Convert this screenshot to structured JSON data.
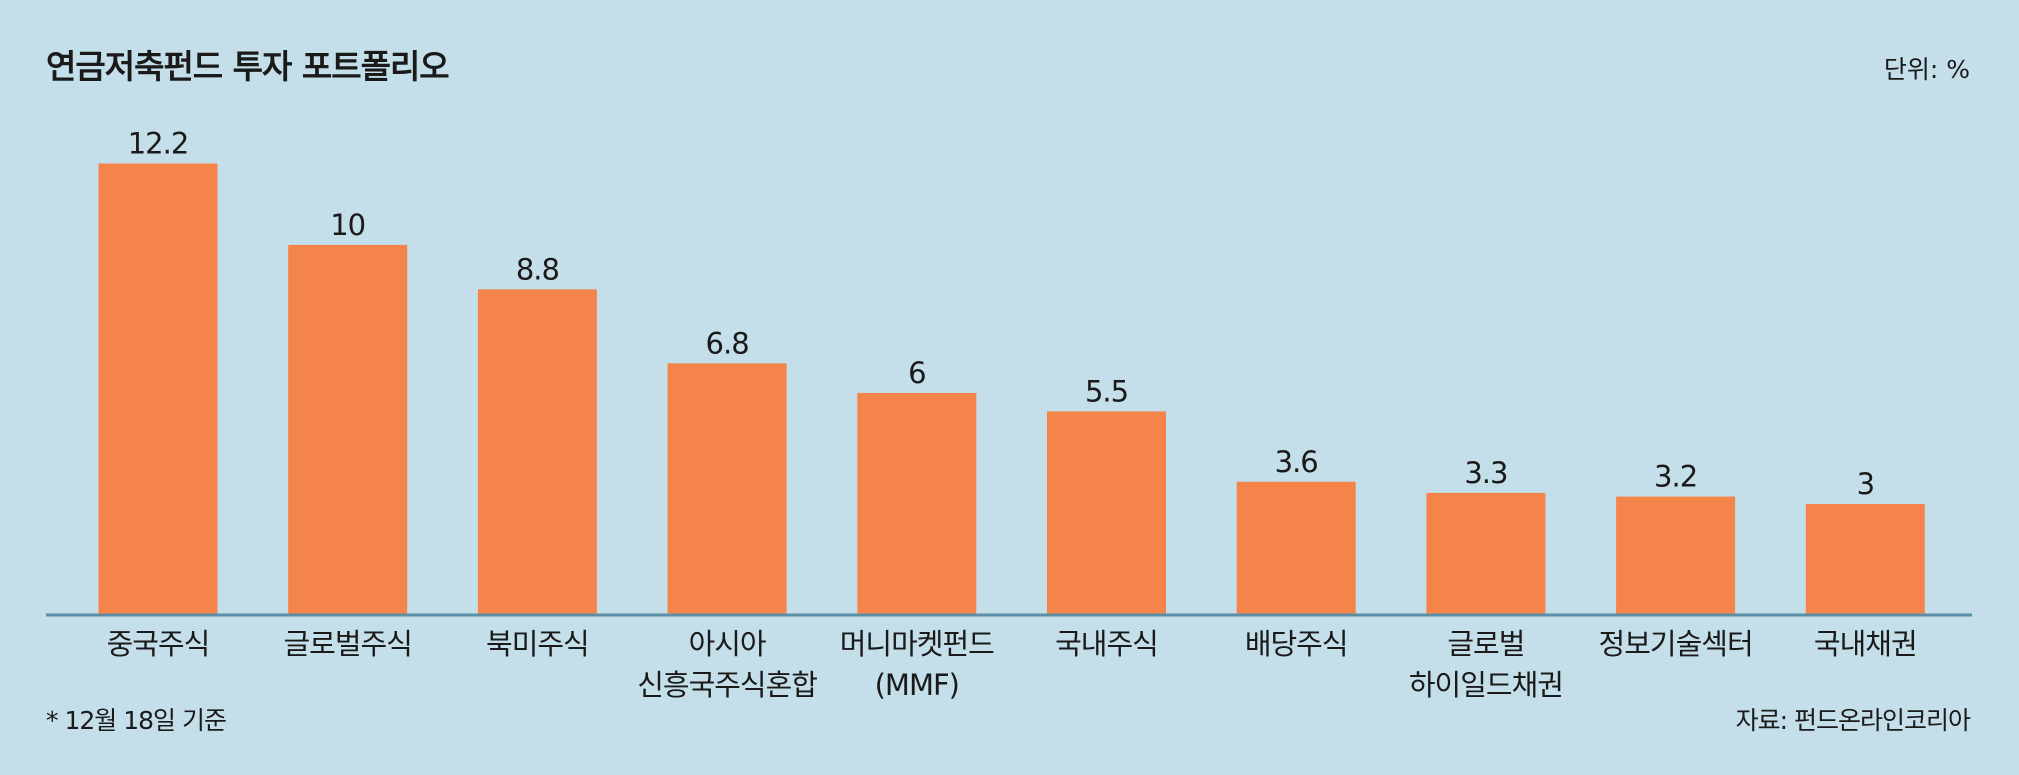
{
  "chart_data": {
    "type": "bar",
    "title": "연금저축펀드 투자 포트폴리오",
    "unit": "단위: %",
    "note": "* 12월 18일 기준",
    "source": "자료: 펀드온라인코리아",
    "categories": [
      "중국주식",
      "글로벌주식",
      "북미주식",
      "아시아\n신흥국주식혼합",
      "머니마켓펀드\n(MMF)",
      "국내주식",
      "배당주식",
      "글로벌\n하이일드채권",
      "정보기술섹터",
      "국내채권"
    ],
    "values": [
      12.2,
      10,
      8.8,
      6.8,
      6,
      5.5,
      3.6,
      3.3,
      3.2,
      3
    ],
    "color": "#f5844a"
  }
}
